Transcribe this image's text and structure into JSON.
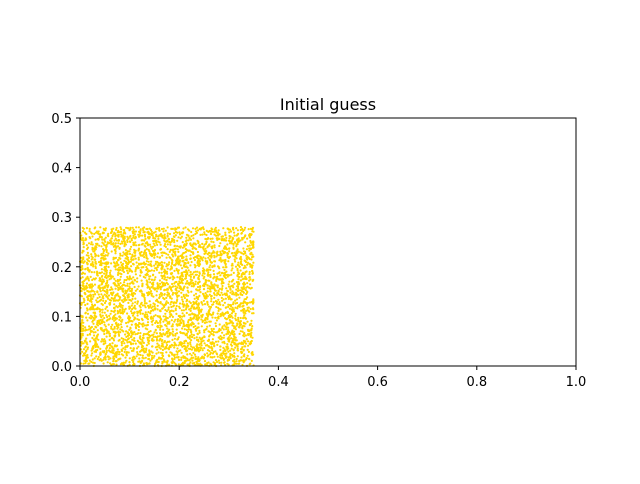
{
  "chart_data": {
    "type": "scatter",
    "title": "Initial guess",
    "xlabel": "",
    "ylabel": "",
    "xlim": [
      0.0,
      1.0
    ],
    "ylim": [
      0.0,
      0.5
    ],
    "xticks": [
      "0.0",
      "0.2",
      "0.4",
      "0.6",
      "0.8",
      "1.0"
    ],
    "yticks": [
      "0.0",
      "0.1",
      "0.2",
      "0.3",
      "0.4",
      "0.5"
    ],
    "grid": false,
    "legend": "none",
    "series": [
      {
        "color": "#ffd700",
        "description": "dense uniform point cloud",
        "x_range": [
          0.0,
          0.35
        ],
        "y_range": [
          0.0,
          0.28
        ],
        "point_count": 4000
      }
    ]
  }
}
